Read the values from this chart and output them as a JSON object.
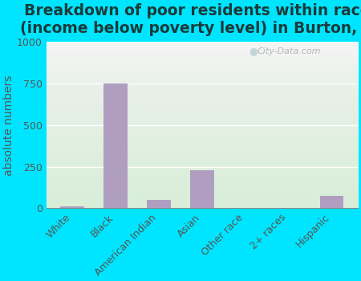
{
  "title": "Breakdown of poor residents within races\n(income below poverty level) in Burton, SC",
  "categories": [
    "White",
    "Black",
    "American Indian",
    "Asian",
    "Other race",
    "2+ races",
    "Hispanic"
  ],
  "values": [
    10,
    750,
    50,
    230,
    0,
    0,
    75
  ],
  "bar_color": "#b09ec0",
  "ylabel": "absolute numbers",
  "ylim": [
    0,
    1000
  ],
  "yticks": [
    0,
    250,
    500,
    750,
    1000
  ],
  "title_fontsize": 13.5,
  "ylabel_fontsize": 10,
  "tick_fontsize": 9,
  "bg_color_top": "#e8f0e8",
  "bg_color_bottom": "#d8eed8",
  "bg_color_top2": "#f5f5f5",
  "outer_bg": "#00e5ff",
  "watermark": "City-Data.com"
}
